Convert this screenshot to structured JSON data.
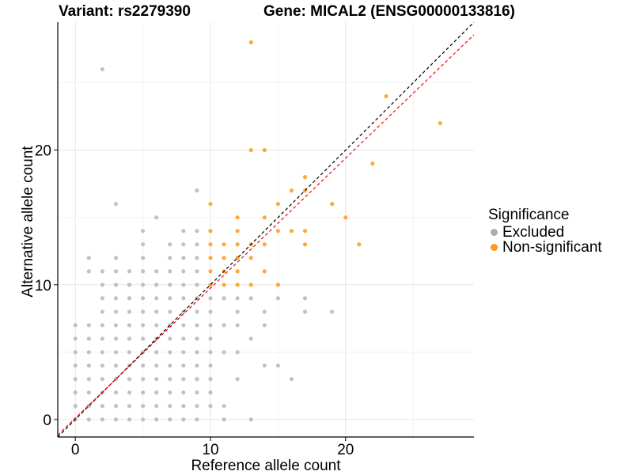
{
  "header": {
    "variant": "Variant: rs2279390",
    "gene": "Gene: MICAL2 (ENSG00000133816)"
  },
  "legend": {
    "title": "Significance",
    "items": [
      {
        "label": "Excluded",
        "color": "#adadad"
      },
      {
        "label": "Non-significant",
        "color": "#ff9a1a"
      }
    ]
  },
  "chart_data": {
    "type": "scatter",
    "xlabel": "Reference allele count",
    "ylabel": "Alternative allele count",
    "xlim": [
      -1.3,
      29.5
    ],
    "ylim": [
      -1.3,
      29.5
    ],
    "xticks": [
      0,
      10,
      20
    ],
    "yticks": [
      0,
      10,
      20
    ],
    "grid": true,
    "legend_position": "right",
    "reference_lines": [
      {
        "style": "dashed",
        "color": "#000000",
        "intercept": 0,
        "slope": 1
      },
      {
        "style": "dashed",
        "color": "#ff0000",
        "intercept": 0.1,
        "slope": 0.965
      }
    ],
    "series": [
      {
        "name": "Excluded",
        "color": "#adadad",
        "points": [
          [
            0,
            0
          ],
          [
            0,
            1
          ],
          [
            0,
            2
          ],
          [
            0,
            3
          ],
          [
            0,
            4
          ],
          [
            0,
            5
          ],
          [
            0,
            6
          ],
          [
            0,
            7
          ],
          [
            1,
            0
          ],
          [
            1,
            1
          ],
          [
            1,
            2
          ],
          [
            1,
            3
          ],
          [
            1,
            4
          ],
          [
            1,
            5
          ],
          [
            1,
            6
          ],
          [
            1,
            7
          ],
          [
            1,
            11
          ],
          [
            1,
            12
          ],
          [
            2,
            0
          ],
          [
            2,
            1
          ],
          [
            2,
            2
          ],
          [
            2,
            3
          ],
          [
            2,
            4
          ],
          [
            2,
            5
          ],
          [
            2,
            6
          ],
          [
            2,
            7
          ],
          [
            2,
            8
          ],
          [
            2,
            9
          ],
          [
            2,
            10
          ],
          [
            2,
            11
          ],
          [
            2,
            26
          ],
          [
            3,
            0
          ],
          [
            3,
            1
          ],
          [
            3,
            2
          ],
          [
            3,
            3
          ],
          [
            3,
            4
          ],
          [
            3,
            5
          ],
          [
            3,
            6
          ],
          [
            3,
            7
          ],
          [
            3,
            8
          ],
          [
            3,
            9
          ],
          [
            3,
            10
          ],
          [
            3,
            11
          ],
          [
            3,
            12
          ],
          [
            3,
            16
          ],
          [
            4,
            0
          ],
          [
            4,
            1
          ],
          [
            4,
            2
          ],
          [
            4,
            3
          ],
          [
            4,
            4
          ],
          [
            4,
            5
          ],
          [
            4,
            6
          ],
          [
            4,
            7
          ],
          [
            4,
            8
          ],
          [
            4,
            9
          ],
          [
            4,
            10
          ],
          [
            4,
            11
          ],
          [
            5,
            0
          ],
          [
            5,
            1
          ],
          [
            5,
            2
          ],
          [
            5,
            3
          ],
          [
            5,
            4
          ],
          [
            5,
            5
          ],
          [
            5,
            6
          ],
          [
            5,
            7
          ],
          [
            5,
            8
          ],
          [
            5,
            9
          ],
          [
            5,
            10
          ],
          [
            5,
            11
          ],
          [
            5,
            12
          ],
          [
            5,
            13
          ],
          [
            5,
            14
          ],
          [
            6,
            0
          ],
          [
            6,
            1
          ],
          [
            6,
            2
          ],
          [
            6,
            3
          ],
          [
            6,
            4
          ],
          [
            6,
            5
          ],
          [
            6,
            6
          ],
          [
            6,
            7
          ],
          [
            6,
            8
          ],
          [
            6,
            9
          ],
          [
            6,
            10
          ],
          [
            6,
            11
          ],
          [
            6,
            15
          ],
          [
            7,
            0
          ],
          [
            7,
            1
          ],
          [
            7,
            2
          ],
          [
            7,
            3
          ],
          [
            7,
            4
          ],
          [
            7,
            5
          ],
          [
            7,
            6
          ],
          [
            7,
            7
          ],
          [
            7,
            8
          ],
          [
            7,
            9
          ],
          [
            7,
            10
          ],
          [
            7,
            11
          ],
          [
            7,
            12
          ],
          [
            7,
            13
          ],
          [
            8,
            0
          ],
          [
            8,
            1
          ],
          [
            8,
            2
          ],
          [
            8,
            3
          ],
          [
            8,
            4
          ],
          [
            8,
            5
          ],
          [
            8,
            6
          ],
          [
            8,
            7
          ],
          [
            8,
            8
          ],
          [
            8,
            9
          ],
          [
            8,
            10
          ],
          [
            8,
            11
          ],
          [
            8,
            12
          ],
          [
            8,
            13
          ],
          [
            8,
            14
          ],
          [
            9,
            0
          ],
          [
            9,
            1
          ],
          [
            9,
            2
          ],
          [
            9,
            3
          ],
          [
            9,
            4
          ],
          [
            9,
            5
          ],
          [
            9,
            6
          ],
          [
            9,
            7
          ],
          [
            9,
            8
          ],
          [
            9,
            9
          ],
          [
            9,
            10
          ],
          [
            9,
            11
          ],
          [
            9,
            12
          ],
          [
            9,
            13
          ],
          [
            9,
            14
          ],
          [
            9,
            17
          ],
          [
            10,
            1
          ],
          [
            10,
            2
          ],
          [
            10,
            3
          ],
          [
            10,
            4
          ],
          [
            10,
            5
          ],
          [
            10,
            6
          ],
          [
            10,
            7
          ],
          [
            10,
            8
          ],
          [
            10,
            9
          ],
          [
            11,
            0
          ],
          [
            11,
            1
          ],
          [
            11,
            5
          ],
          [
            11,
            7
          ],
          [
            11,
            9
          ],
          [
            12,
            3
          ],
          [
            12,
            5
          ],
          [
            12,
            7
          ],
          [
            12,
            8
          ],
          [
            12,
            9
          ],
          [
            13,
            0
          ],
          [
            13,
            6
          ],
          [
            13,
            9
          ],
          [
            14,
            4
          ],
          [
            14,
            7
          ],
          [
            14,
            8
          ],
          [
            15,
            4
          ],
          [
            15,
            9
          ],
          [
            16,
            3
          ],
          [
            17,
            8
          ],
          [
            17,
            9
          ],
          [
            19,
            8
          ]
        ]
      },
      {
        "name": "Non-significant",
        "color": "#ff9a1a",
        "points": [
          [
            10,
            10
          ],
          [
            10,
            11
          ],
          [
            10,
            12
          ],
          [
            10,
            13
          ],
          [
            10,
            14
          ],
          [
            10,
            16
          ],
          [
            11,
            10
          ],
          [
            11,
            11
          ],
          [
            11,
            12
          ],
          [
            11,
            13
          ],
          [
            12,
            10
          ],
          [
            12,
            11
          ],
          [
            12,
            12
          ],
          [
            12,
            13
          ],
          [
            12,
            14
          ],
          [
            12,
            15
          ],
          [
            13,
            10
          ],
          [
            13,
            12
          ],
          [
            13,
            13
          ],
          [
            13,
            20
          ],
          [
            13,
            28
          ],
          [
            14,
            11
          ],
          [
            14,
            13
          ],
          [
            14,
            15
          ],
          [
            14,
            20
          ],
          [
            15,
            10
          ],
          [
            15,
            14
          ],
          [
            15,
            16
          ],
          [
            16,
            14
          ],
          [
            16,
            17
          ],
          [
            17,
            13
          ],
          [
            17,
            14
          ],
          [
            17,
            17
          ],
          [
            17,
            18
          ],
          [
            19,
            16
          ],
          [
            20,
            15
          ],
          [
            21,
            13
          ],
          [
            22,
            19
          ],
          [
            23,
            24
          ],
          [
            27,
            22
          ]
        ]
      }
    ]
  }
}
